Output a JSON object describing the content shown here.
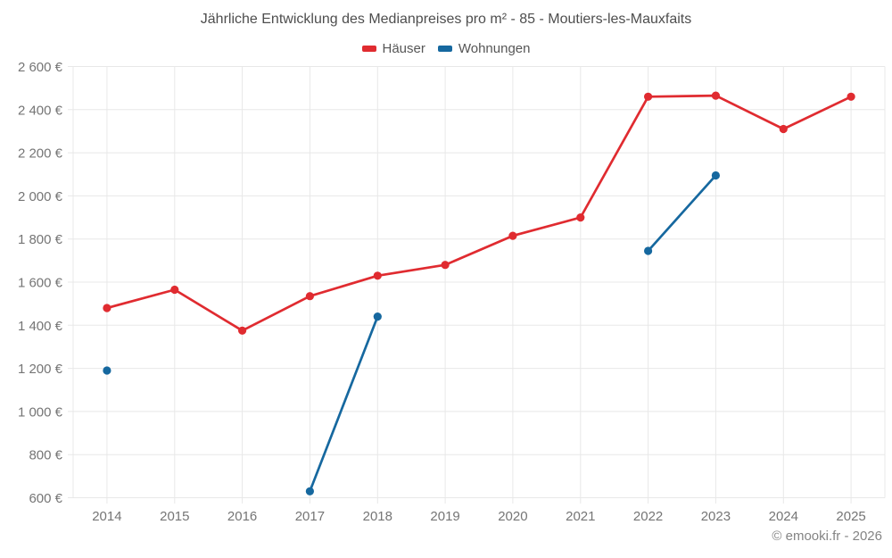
{
  "header": {
    "title": "Jährliche Entwicklung des Medianpreises pro m² - 85 - Moutiers-les-Mauxfaits"
  },
  "legend": {
    "items": [
      {
        "label": "Häuser",
        "color": "#e02b30"
      },
      {
        "label": "Wohnungen",
        "color": "#16689f"
      }
    ]
  },
  "footer": {
    "credit": "© emooki.fr - 2026"
  },
  "chart_data": {
    "type": "line",
    "title": "Jährliche Entwicklung des Medianpreises pro m² - 85 - Moutiers-les-Mauxfaits",
    "xlabel": "",
    "ylabel": "",
    "categories": [
      "2014",
      "2015",
      "2016",
      "2017",
      "2018",
      "2019",
      "2020",
      "2021",
      "2022",
      "2023",
      "2024",
      "2025"
    ],
    "series": [
      {
        "name": "Häuser",
        "color": "#e02b30",
        "values": [
          1480,
          1565,
          1375,
          1535,
          1630,
          1680,
          1815,
          1900,
          2460,
          2465,
          2310,
          2460
        ]
      },
      {
        "name": "Wohnungen",
        "color": "#16689f",
        "values": [
          1190,
          null,
          null,
          630,
          1440,
          null,
          null,
          null,
          1745,
          2095,
          null,
          null
        ]
      }
    ],
    "ylim": [
      600,
      2600
    ],
    "y_ticks": [
      600,
      800,
      1000,
      1200,
      1400,
      1600,
      1800,
      2000,
      2200,
      2400,
      2600
    ],
    "y_tick_labels": [
      "600 €",
      "800 €",
      "1 000 €",
      "1 200 €",
      "1 400 €",
      "1 600 €",
      "1 800 €",
      "2 000 €",
      "2 200 €",
      "2 400 €",
      "2 600 €"
    ],
    "grid": true,
    "legend_position": "top",
    "grid_color": "#e8e8e8",
    "tick_color": "#757575",
    "currency_suffix": "€"
  }
}
